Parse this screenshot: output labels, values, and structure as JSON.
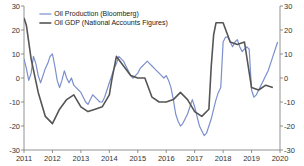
{
  "chart_data": {
    "type": "line",
    "series": [
      {
        "name": "Oil Production (Bloomberg)",
        "color": "#7b8fcc",
        "x": [
          2011.0,
          2011.083,
          2011.167,
          2011.25,
          2011.333,
          2011.417,
          2011.5,
          2011.583,
          2011.667,
          2011.75,
          2011.833,
          2011.917,
          2012.0,
          2012.083,
          2012.167,
          2012.25,
          2012.333,
          2012.417,
          2012.5,
          2012.583,
          2012.667,
          2012.75,
          2012.833,
          2012.917,
          2013.0,
          2013.083,
          2013.167,
          2013.25,
          2013.333,
          2013.417,
          2013.5,
          2013.583,
          2013.667,
          2013.75,
          2013.833,
          2013.917,
          2014.0,
          2014.083,
          2014.167,
          2014.25,
          2014.333,
          2014.417,
          2014.5,
          2014.583,
          2014.667,
          2014.75,
          2014.833,
          2014.917,
          2015.0,
          2015.083,
          2015.167,
          2015.25,
          2015.333,
          2015.417,
          2015.5,
          2015.583,
          2015.667,
          2015.75,
          2015.833,
          2015.917,
          2016.0,
          2016.083,
          2016.167,
          2016.25,
          2016.333,
          2016.417,
          2016.5,
          2016.583,
          2016.667,
          2016.75,
          2016.833,
          2016.917,
          2017.0,
          2017.083,
          2017.167,
          2017.25,
          2017.333,
          2017.417,
          2017.5,
          2017.583,
          2017.667,
          2017.75,
          2017.833,
          2017.917,
          2018.0,
          2018.083,
          2018.167,
          2018.25,
          2018.333,
          2018.417,
          2018.5,
          2018.583,
          2018.667,
          2018.75,
          2018.833,
          2018.917,
          2019.0,
          2019.083,
          2019.167,
          2019.25,
          2019.333,
          2019.417,
          2019.5,
          2019.583,
          2019.667,
          2019.75,
          2019.833,
          2019.917
        ],
        "values": [
          8,
          4,
          -1,
          2,
          9,
          6,
          1,
          -2,
          1,
          4,
          6,
          9,
          10,
          5,
          -1,
          -4,
          -1,
          3,
          0,
          -2,
          0,
          -3,
          -4,
          -5,
          -6,
          -8,
          -10,
          -11,
          -9,
          -7,
          -8,
          -9,
          -10,
          -10,
          -8,
          -5,
          -2,
          1,
          4,
          6,
          9,
          8,
          7,
          5,
          3,
          1,
          0,
          1,
          2,
          4,
          5,
          6,
          7,
          6,
          5,
          4,
          3,
          2,
          1,
          0,
          1,
          -1,
          -4,
          -9,
          -15,
          -18,
          -20,
          -19,
          -17,
          -15,
          -12,
          -9,
          -12,
          -16,
          -20,
          -22,
          -24,
          -23,
          -20,
          -17,
          -13,
          -9,
          -6,
          -4,
          15,
          17,
          17,
          15,
          13,
          15,
          16,
          13,
          11,
          12,
          13,
          12,
          -5,
          -8,
          -7,
          -5,
          -3,
          -1,
          1,
          3,
          6,
          9,
          12,
          15
        ]
      },
      {
        "name": "Oil GDP (National Accounts Figures)",
        "color": "#555555",
        "x": [
          2011.0,
          2011.083,
          2011.25,
          2011.5,
          2011.75,
          2012.0,
          2012.25,
          2012.5,
          2012.75,
          2013.0,
          2013.25,
          2013.5,
          2013.75,
          2014.0,
          2014.083,
          2014.25,
          2014.5,
          2014.75,
          2015.0,
          2015.25,
          2015.5,
          2015.75,
          2016.0,
          2016.25,
          2016.5,
          2016.75,
          2017.0,
          2017.25,
          2017.5,
          2017.583,
          2017.667,
          2017.75,
          2018.0,
          2018.25,
          2018.5,
          2018.75,
          2019.0,
          2019.25,
          2019.5,
          2019.75
        ],
        "values": [
          25,
          22,
          8,
          -6,
          -16,
          -19,
          -13,
          -9,
          -7,
          -12,
          -14,
          -13,
          -12,
          -7,
          -1,
          9,
          5,
          1,
          0,
          0,
          -8,
          -10,
          -10,
          -9,
          -6,
          -9,
          -14,
          -16,
          -13,
          5,
          18,
          23,
          23,
          15,
          14,
          15,
          -4,
          -5,
          -3,
          -4
        ]
      }
    ],
    "xlim": [
      2011,
      2020
    ],
    "xticks": [
      2011,
      2012,
      2013,
      2014,
      2015,
      2016,
      2017,
      2018,
      2019,
      2020
    ],
    "ylim": [
      -30,
      30
    ],
    "yticks": [
      -30,
      -20,
      -10,
      0,
      10,
      20,
      30
    ],
    "y2lim": [
      -30,
      30
    ],
    "y2ticks": [
      -30,
      -20,
      -10,
      0,
      10,
      20,
      30
    ],
    "legend": "upper left",
    "grid": false
  }
}
